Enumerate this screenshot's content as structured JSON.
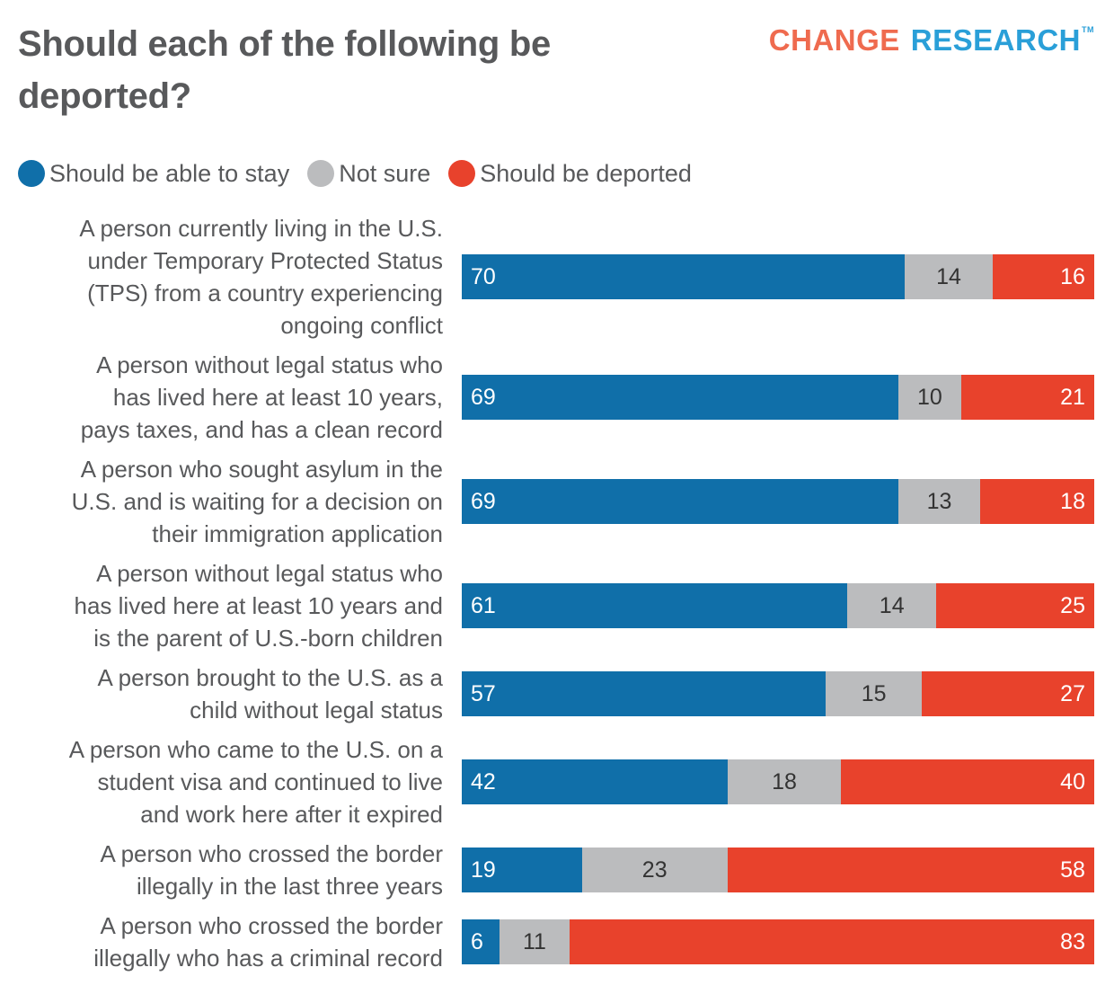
{
  "header": {
    "title": "Should each of the following be deported?",
    "logo_part1": "CHANGE",
    "logo_part2": "RESEARCH",
    "logo_tm": "TM"
  },
  "colors": {
    "stay": "#106fa9",
    "unsure": "#bbbcbe",
    "deport": "#e8422c"
  },
  "chart_data": {
    "type": "bar",
    "orientation": "horizontal",
    "stacked": true,
    "normalized": true,
    "title": "Should each of the following be deported?",
    "xlabel": "",
    "ylabel": "",
    "xlim": [
      0,
      100
    ],
    "grid": false,
    "legend_position": "top-left",
    "legend": [
      "Should be able to stay",
      "Not sure",
      "Should be deported"
    ],
    "categories": [
      "A person currently living in the U.S. under Temporary Protected Status (TPS) from a country experiencing ongoing conflict",
      "A person without legal status who has lived here at least 10 years, pays taxes, and has a clean record",
      "A person who sought asylum in the U.S. and is waiting for a decision on their immigration application",
      "A person without legal status who has lived here at least 10 years and is the parent of U.S.-born children",
      "A person brought to the U.S. as a child without legal status",
      "A person who came to the U.S. on a student visa and continued to live and work here after it expired",
      "A person who crossed the border illegally in the last three years",
      "A person who crossed the border illegally who has a criminal record"
    ],
    "series": [
      {
        "name": "Should be able to stay",
        "key": "stay",
        "values": [
          70,
          69,
          69,
          61,
          57,
          42,
          19,
          6
        ]
      },
      {
        "name": "Not sure",
        "key": "unsure",
        "values": [
          14,
          10,
          13,
          14,
          15,
          18,
          23,
          11
        ]
      },
      {
        "name": "Should be deported",
        "key": "deport",
        "values": [
          16,
          21,
          18,
          25,
          27,
          40,
          58,
          83
        ]
      }
    ]
  }
}
